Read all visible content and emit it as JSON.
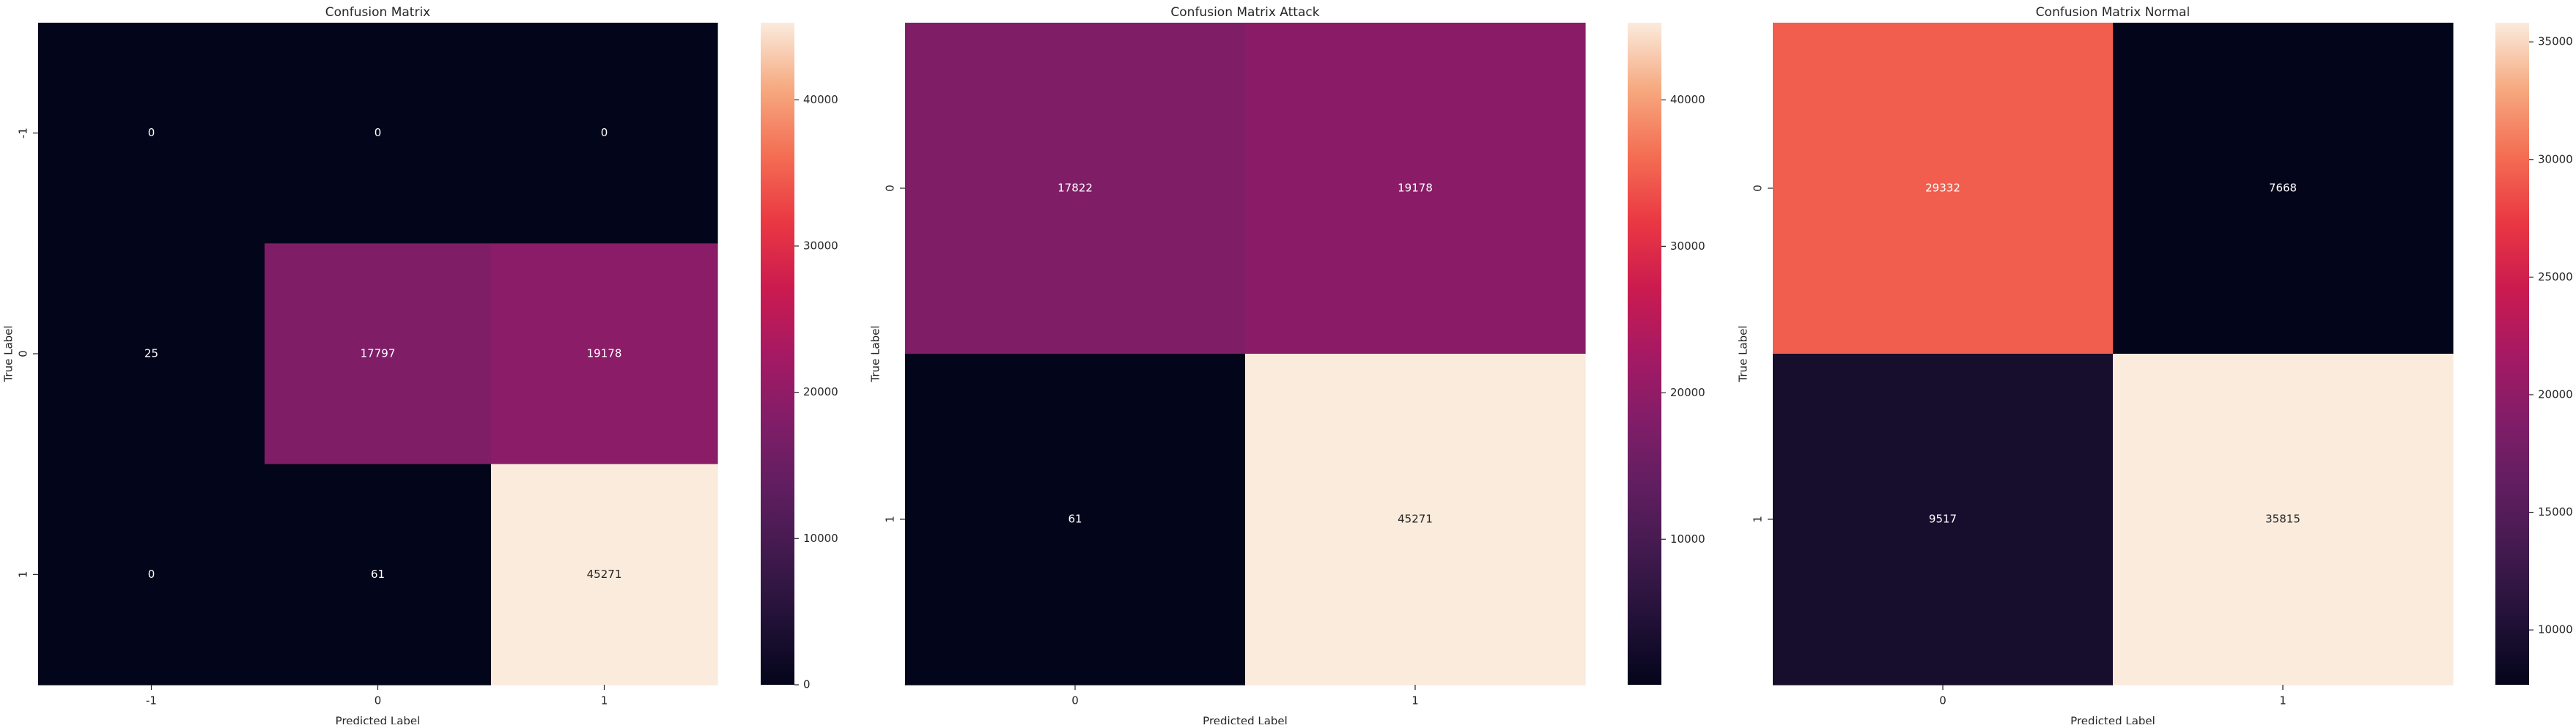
{
  "chart_data": [
    {
      "type": "heatmap",
      "title": "Confusion Matrix",
      "xlabel": "Predicted Label",
      "ylabel": "True Label",
      "x_categories": [
        "-1",
        "0",
        "1"
      ],
      "y_categories": [
        "-1",
        "0",
        "1"
      ],
      "values": [
        [
          0,
          0,
          0
        ],
        [
          25,
          17797,
          19178
        ],
        [
          0,
          61,
          45271
        ]
      ],
      "colormap": "rocket",
      "colorbar": {
        "min": 0,
        "max": 45271,
        "ticks": [
          0,
          10000,
          20000,
          30000,
          40000
        ]
      }
    },
    {
      "type": "heatmap",
      "title": "Confusion Matrix Attack",
      "xlabel": "Predicted Label",
      "ylabel": "True Label",
      "x_categories": [
        "0",
        "1"
      ],
      "y_categories": [
        "0",
        "1"
      ],
      "values": [
        [
          17822,
          19178
        ],
        [
          61,
          45271
        ]
      ],
      "colormap": "rocket",
      "colorbar": {
        "min": 61,
        "max": 45271,
        "ticks": [
          10000,
          20000,
          30000,
          40000
        ]
      }
    },
    {
      "type": "heatmap",
      "title": "Confusion Matrix Normal",
      "xlabel": "Predicted Label",
      "ylabel": "True Label",
      "x_categories": [
        "0",
        "1"
      ],
      "y_categories": [
        "0",
        "1"
      ],
      "values": [
        [
          29332,
          7668
        ],
        [
          9517,
          35815
        ]
      ],
      "colormap": "rocket",
      "colorbar": {
        "min": 7668,
        "max": 35815,
        "ticks": [
          10000,
          15000,
          20000,
          25000,
          30000,
          35000
        ]
      }
    }
  ]
}
